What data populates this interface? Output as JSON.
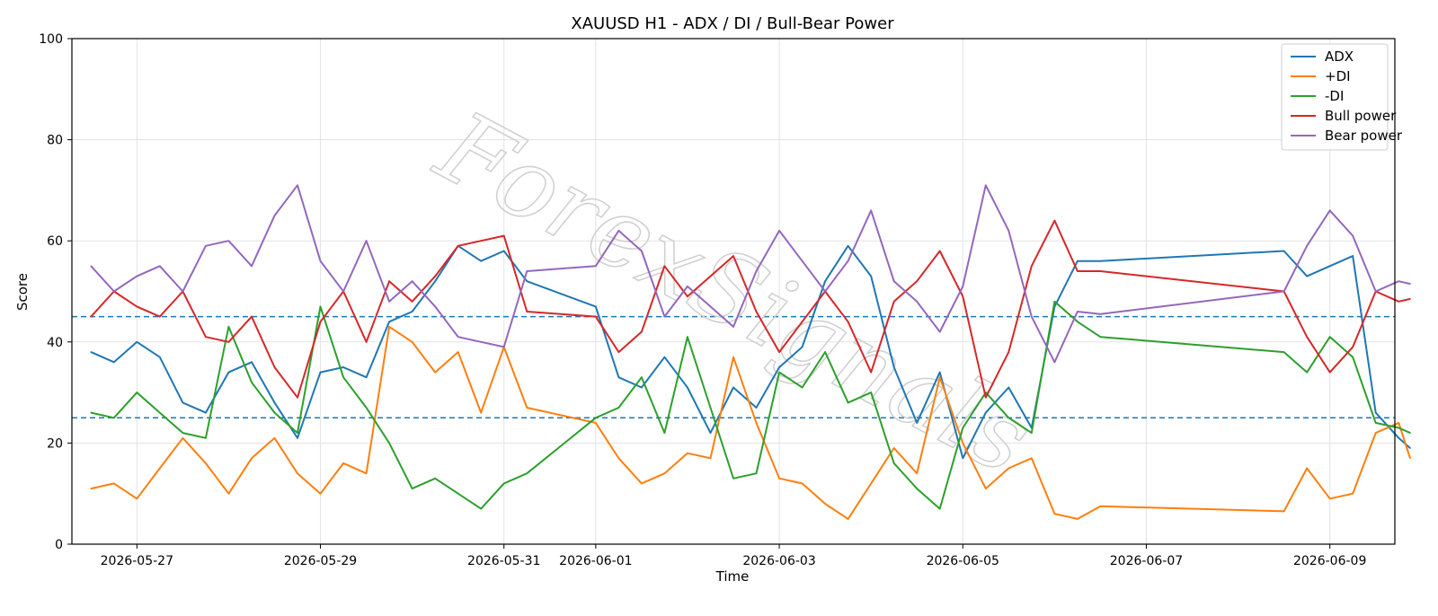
{
  "chart_data": {
    "type": "line",
    "title": "XAUUSD H1 - ADX / DI / Bull-Bear Power",
    "xlabel": "Time",
    "ylabel": "Score",
    "ylim": [
      0,
      100
    ],
    "xlim": [
      "2026-05-26T07:00",
      "2026-06-09T17:00"
    ],
    "x_ticks": [
      "2026-05-27",
      "2026-05-29",
      "2026-05-31",
      "2026-06-01",
      "2026-06-03",
      "2026-06-05",
      "2026-06-07",
      "2026-06-09"
    ],
    "y_ticks": [
      0,
      20,
      40,
      60,
      80,
      100
    ],
    "grid": true,
    "legend_position": "top-right",
    "reference_lines": [
      {
        "y": 45,
        "color": "#1f77b4",
        "style": "dashed"
      },
      {
        "y": 25,
        "color": "#1f77b4",
        "style": "dashed"
      }
    ],
    "watermark": "ForexSignals",
    "series": [
      {
        "name": "ADX",
        "color": "#1f77b4",
        "points": [
          [
            "2026-05-26T12:00",
            38
          ],
          [
            "2026-05-26T18:00",
            36
          ],
          [
            "2026-05-27T00:00",
            40
          ],
          [
            "2026-05-27T06:00",
            37
          ],
          [
            "2026-05-27T12:00",
            28
          ],
          [
            "2026-05-27T18:00",
            26
          ],
          [
            "2026-05-28T00:00",
            34
          ],
          [
            "2026-05-28T06:00",
            36
          ],
          [
            "2026-05-28T12:00",
            28
          ],
          [
            "2026-05-28T18:00",
            21
          ],
          [
            "2026-05-29T00:00",
            34
          ],
          [
            "2026-05-29T06:00",
            35
          ],
          [
            "2026-05-29T12:00",
            33
          ],
          [
            "2026-05-29T18:00",
            44
          ],
          [
            "2026-05-30T00:00",
            46
          ],
          [
            "2026-05-30T06:00",
            52
          ],
          [
            "2026-05-30T12:00",
            59
          ],
          [
            "2026-05-30T18:00",
            56
          ],
          [
            "2026-05-31T00:00",
            58
          ],
          [
            "2026-05-31T06:00",
            52
          ],
          [
            "2026-06-01T00:00",
            47
          ],
          [
            "2026-06-01T06:00",
            33
          ],
          [
            "2026-06-01T12:00",
            31
          ],
          [
            "2026-06-01T18:00",
            37
          ],
          [
            "2026-06-02T00:00",
            31
          ],
          [
            "2026-06-02T06:00",
            22
          ],
          [
            "2026-06-02T12:00",
            31
          ],
          [
            "2026-06-02T18:00",
            27
          ],
          [
            "2026-06-03T00:00",
            35
          ],
          [
            "2026-06-03T06:00",
            39
          ],
          [
            "2026-06-03T12:00",
            52
          ],
          [
            "2026-06-03T18:00",
            59
          ],
          [
            "2026-06-04T00:00",
            53
          ],
          [
            "2026-06-04T06:00",
            35
          ],
          [
            "2026-06-04T12:00",
            24
          ],
          [
            "2026-06-04T18:00",
            34
          ],
          [
            "2026-06-05T00:00",
            17
          ],
          [
            "2026-06-05T06:00",
            26
          ],
          [
            "2026-06-05T12:00",
            31
          ],
          [
            "2026-06-05T18:00",
            23
          ],
          [
            "2026-06-06T00:00",
            47
          ],
          [
            "2026-06-06T06:00",
            56
          ],
          [
            "2026-06-06T12:00",
            56
          ],
          [
            "2026-06-08T12:00",
            58
          ],
          [
            "2026-06-08T18:00",
            53
          ],
          [
            "2026-06-09T00:00",
            55
          ],
          [
            "2026-06-09T06:00",
            57
          ],
          [
            "2026-06-09T12:00",
            26
          ],
          [
            "2026-06-09T18:00",
            21
          ],
          [
            "2026-06-09T21:00",
            19
          ]
        ]
      },
      {
        "name": "+DI",
        "color": "#ff7f0e",
        "points": [
          [
            "2026-05-26T12:00",
            11
          ],
          [
            "2026-05-26T18:00",
            12
          ],
          [
            "2026-05-27T00:00",
            9
          ],
          [
            "2026-05-27T06:00",
            15
          ],
          [
            "2026-05-27T12:00",
            21
          ],
          [
            "2026-05-27T18:00",
            16
          ],
          [
            "2026-05-28T00:00",
            10
          ],
          [
            "2026-05-28T06:00",
            17
          ],
          [
            "2026-05-28T12:00",
            21
          ],
          [
            "2026-05-28T18:00",
            14
          ],
          [
            "2026-05-29T00:00",
            10
          ],
          [
            "2026-05-29T06:00",
            16
          ],
          [
            "2026-05-29T12:00",
            14
          ],
          [
            "2026-05-29T18:00",
            43
          ],
          [
            "2026-05-30T00:00",
            40
          ],
          [
            "2026-05-30T06:00",
            34
          ],
          [
            "2026-05-30T12:00",
            38
          ],
          [
            "2026-05-30T18:00",
            26
          ],
          [
            "2026-05-31T00:00",
            39
          ],
          [
            "2026-05-31T06:00",
            27
          ],
          [
            "2026-06-01T00:00",
            24
          ],
          [
            "2026-06-01T06:00",
            17
          ],
          [
            "2026-06-01T12:00",
            12
          ],
          [
            "2026-06-01T18:00",
            14
          ],
          [
            "2026-06-02T00:00",
            18
          ],
          [
            "2026-06-02T06:00",
            17
          ],
          [
            "2026-06-02T12:00",
            37
          ],
          [
            "2026-06-02T18:00",
            24
          ],
          [
            "2026-06-03T00:00",
            13
          ],
          [
            "2026-06-03T06:00",
            12
          ],
          [
            "2026-06-03T12:00",
            8
          ],
          [
            "2026-06-03T18:00",
            5
          ],
          [
            "2026-06-04T00:00",
            12
          ],
          [
            "2026-06-04T06:00",
            19
          ],
          [
            "2026-06-04T12:00",
            14
          ],
          [
            "2026-06-04T18:00",
            33
          ],
          [
            "2026-06-05T00:00",
            20
          ],
          [
            "2026-06-05T06:00",
            11
          ],
          [
            "2026-06-05T12:00",
            15
          ],
          [
            "2026-06-05T18:00",
            17
          ],
          [
            "2026-06-06T00:00",
            6
          ],
          [
            "2026-06-06T06:00",
            5
          ],
          [
            "2026-06-06T12:00",
            7.5
          ],
          [
            "2026-06-08T12:00",
            6.5
          ],
          [
            "2026-06-08T18:00",
            15
          ],
          [
            "2026-06-09T00:00",
            9
          ],
          [
            "2026-06-09T06:00",
            10
          ],
          [
            "2026-06-09T12:00",
            22
          ],
          [
            "2026-06-09T18:00",
            24
          ],
          [
            "2026-06-09T21:00",
            17
          ]
        ]
      },
      {
        "name": "-DI",
        "color": "#2ca02c",
        "points": [
          [
            "2026-05-26T12:00",
            26
          ],
          [
            "2026-05-26T18:00",
            25
          ],
          [
            "2026-05-27T00:00",
            30
          ],
          [
            "2026-05-27T06:00",
            26
          ],
          [
            "2026-05-27T12:00",
            22
          ],
          [
            "2026-05-27T18:00",
            21
          ],
          [
            "2026-05-28T00:00",
            43
          ],
          [
            "2026-05-28T06:00",
            32
          ],
          [
            "2026-05-28T12:00",
            26
          ],
          [
            "2026-05-28T18:00",
            22
          ],
          [
            "2026-05-29T00:00",
            47
          ],
          [
            "2026-05-29T06:00",
            33
          ],
          [
            "2026-05-29T12:00",
            27
          ],
          [
            "2026-05-29T18:00",
            20
          ],
          [
            "2026-05-30T00:00",
            11
          ],
          [
            "2026-05-30T06:00",
            13
          ],
          [
            "2026-05-30T12:00",
            10
          ],
          [
            "2026-05-30T18:00",
            7
          ],
          [
            "2026-05-31T00:00",
            12
          ],
          [
            "2026-05-31T06:00",
            14
          ],
          [
            "2026-06-01T00:00",
            25
          ],
          [
            "2026-06-01T06:00",
            27
          ],
          [
            "2026-06-01T12:00",
            33
          ],
          [
            "2026-06-01T18:00",
            22
          ],
          [
            "2026-06-02T00:00",
            41
          ],
          [
            "2026-06-02T06:00",
            27
          ],
          [
            "2026-06-02T12:00",
            13
          ],
          [
            "2026-06-02T18:00",
            14
          ],
          [
            "2026-06-03T00:00",
            34
          ],
          [
            "2026-06-03T06:00",
            31
          ],
          [
            "2026-06-03T12:00",
            38
          ],
          [
            "2026-06-03T18:00",
            28
          ],
          [
            "2026-06-04T00:00",
            30
          ],
          [
            "2026-06-04T06:00",
            16
          ],
          [
            "2026-06-04T12:00",
            11
          ],
          [
            "2026-06-04T18:00",
            7
          ],
          [
            "2026-06-05T00:00",
            23
          ],
          [
            "2026-06-05T06:00",
            30
          ],
          [
            "2026-06-05T12:00",
            25
          ],
          [
            "2026-06-05T18:00",
            22
          ],
          [
            "2026-06-06T00:00",
            48
          ],
          [
            "2026-06-06T06:00",
            44
          ],
          [
            "2026-06-06T12:00",
            41
          ],
          [
            "2026-06-08T12:00",
            38
          ],
          [
            "2026-06-08T18:00",
            34
          ],
          [
            "2026-06-09T00:00",
            41
          ],
          [
            "2026-06-09T06:00",
            37
          ],
          [
            "2026-06-09T12:00",
            24
          ],
          [
            "2026-06-09T18:00",
            23
          ],
          [
            "2026-06-09T21:00",
            22
          ]
        ]
      },
      {
        "name": "Bull power",
        "color": "#d62728",
        "points": [
          [
            "2026-05-26T12:00",
            45
          ],
          [
            "2026-05-26T18:00",
            50
          ],
          [
            "2026-05-27T00:00",
            47
          ],
          [
            "2026-05-27T06:00",
            45
          ],
          [
            "2026-05-27T12:00",
            50
          ],
          [
            "2026-05-27T18:00",
            41
          ],
          [
            "2026-05-28T00:00",
            40
          ],
          [
            "2026-05-28T06:00",
            45
          ],
          [
            "2026-05-28T12:00",
            35
          ],
          [
            "2026-05-28T18:00",
            29
          ],
          [
            "2026-05-29T00:00",
            44
          ],
          [
            "2026-05-29T06:00",
            50
          ],
          [
            "2026-05-29T12:00",
            40
          ],
          [
            "2026-05-29T18:00",
            52
          ],
          [
            "2026-05-30T00:00",
            48
          ],
          [
            "2026-05-30T06:00",
            53
          ],
          [
            "2026-05-30T12:00",
            59
          ],
          [
            "2026-05-30T18:00",
            60
          ],
          [
            "2026-05-31T00:00",
            61
          ],
          [
            "2026-05-31T06:00",
            46
          ],
          [
            "2026-06-01T00:00",
            45
          ],
          [
            "2026-06-01T06:00",
            38
          ],
          [
            "2026-06-01T12:00",
            42
          ],
          [
            "2026-06-01T18:00",
            55
          ],
          [
            "2026-06-02T00:00",
            49
          ],
          [
            "2026-06-02T06:00",
            53
          ],
          [
            "2026-06-02T12:00",
            57
          ],
          [
            "2026-06-02T18:00",
            46
          ],
          [
            "2026-06-03T00:00",
            38
          ],
          [
            "2026-06-03T06:00",
            44
          ],
          [
            "2026-06-03T12:00",
            50
          ],
          [
            "2026-06-03T18:00",
            44
          ],
          [
            "2026-06-04T00:00",
            34
          ],
          [
            "2026-06-04T06:00",
            48
          ],
          [
            "2026-06-04T12:00",
            52
          ],
          [
            "2026-06-04T18:00",
            58
          ],
          [
            "2026-06-05T00:00",
            49
          ],
          [
            "2026-06-05T06:00",
            29
          ],
          [
            "2026-06-05T12:00",
            38
          ],
          [
            "2026-06-05T18:00",
            55
          ],
          [
            "2026-06-06T00:00",
            64
          ],
          [
            "2026-06-06T06:00",
            54
          ],
          [
            "2026-06-06T12:00",
            54
          ],
          [
            "2026-06-08T12:00",
            50
          ],
          [
            "2026-06-08T18:00",
            41
          ],
          [
            "2026-06-09T00:00",
            34
          ],
          [
            "2026-06-09T06:00",
            39
          ],
          [
            "2026-06-09T12:00",
            50
          ],
          [
            "2026-06-09T18:00",
            48
          ],
          [
            "2026-06-09T21:00",
            48.5
          ]
        ]
      },
      {
        "name": "Bear power",
        "color": "#9467bd",
        "points": [
          [
            "2026-05-26T12:00",
            55
          ],
          [
            "2026-05-26T18:00",
            50
          ],
          [
            "2026-05-27T00:00",
            53
          ],
          [
            "2026-05-27T06:00",
            55
          ],
          [
            "2026-05-27T12:00",
            50
          ],
          [
            "2026-05-27T18:00",
            59
          ],
          [
            "2026-05-28T00:00",
            60
          ],
          [
            "2026-05-28T06:00",
            55
          ],
          [
            "2026-05-28T12:00",
            65
          ],
          [
            "2026-05-28T18:00",
            71
          ],
          [
            "2026-05-29T00:00",
            56
          ],
          [
            "2026-05-29T06:00",
            50
          ],
          [
            "2026-05-29T12:00",
            60
          ],
          [
            "2026-05-29T18:00",
            48
          ],
          [
            "2026-05-30T00:00",
            52
          ],
          [
            "2026-05-30T06:00",
            47
          ],
          [
            "2026-05-30T12:00",
            41
          ],
          [
            "2026-05-30T18:00",
            40
          ],
          [
            "2026-05-31T00:00",
            39
          ],
          [
            "2026-05-31T06:00",
            54
          ],
          [
            "2026-06-01T00:00",
            55
          ],
          [
            "2026-06-01T06:00",
            62
          ],
          [
            "2026-06-01T12:00",
            58
          ],
          [
            "2026-06-01T18:00",
            45
          ],
          [
            "2026-06-02T00:00",
            51
          ],
          [
            "2026-06-02T06:00",
            47
          ],
          [
            "2026-06-02T12:00",
            43
          ],
          [
            "2026-06-02T18:00",
            54
          ],
          [
            "2026-06-03T00:00",
            62
          ],
          [
            "2026-06-03T06:00",
            56
          ],
          [
            "2026-06-03T12:00",
            50
          ],
          [
            "2026-06-03T18:00",
            56
          ],
          [
            "2026-06-04T00:00",
            66
          ],
          [
            "2026-06-04T06:00",
            52
          ],
          [
            "2026-06-04T12:00",
            48
          ],
          [
            "2026-06-04T18:00",
            42
          ],
          [
            "2026-06-05T00:00",
            51
          ],
          [
            "2026-06-05T06:00",
            71
          ],
          [
            "2026-06-05T12:00",
            62
          ],
          [
            "2026-06-05T18:00",
            45
          ],
          [
            "2026-06-06T00:00",
            36
          ],
          [
            "2026-06-06T06:00",
            46
          ],
          [
            "2026-06-06T12:00",
            45.5
          ],
          [
            "2026-06-08T12:00",
            50
          ],
          [
            "2026-06-08T18:00",
            59
          ],
          [
            "2026-06-09T00:00",
            66
          ],
          [
            "2026-06-09T06:00",
            61
          ],
          [
            "2026-06-09T12:00",
            50
          ],
          [
            "2026-06-09T18:00",
            52
          ],
          [
            "2026-06-09T21:00",
            51.5
          ]
        ]
      }
    ]
  }
}
